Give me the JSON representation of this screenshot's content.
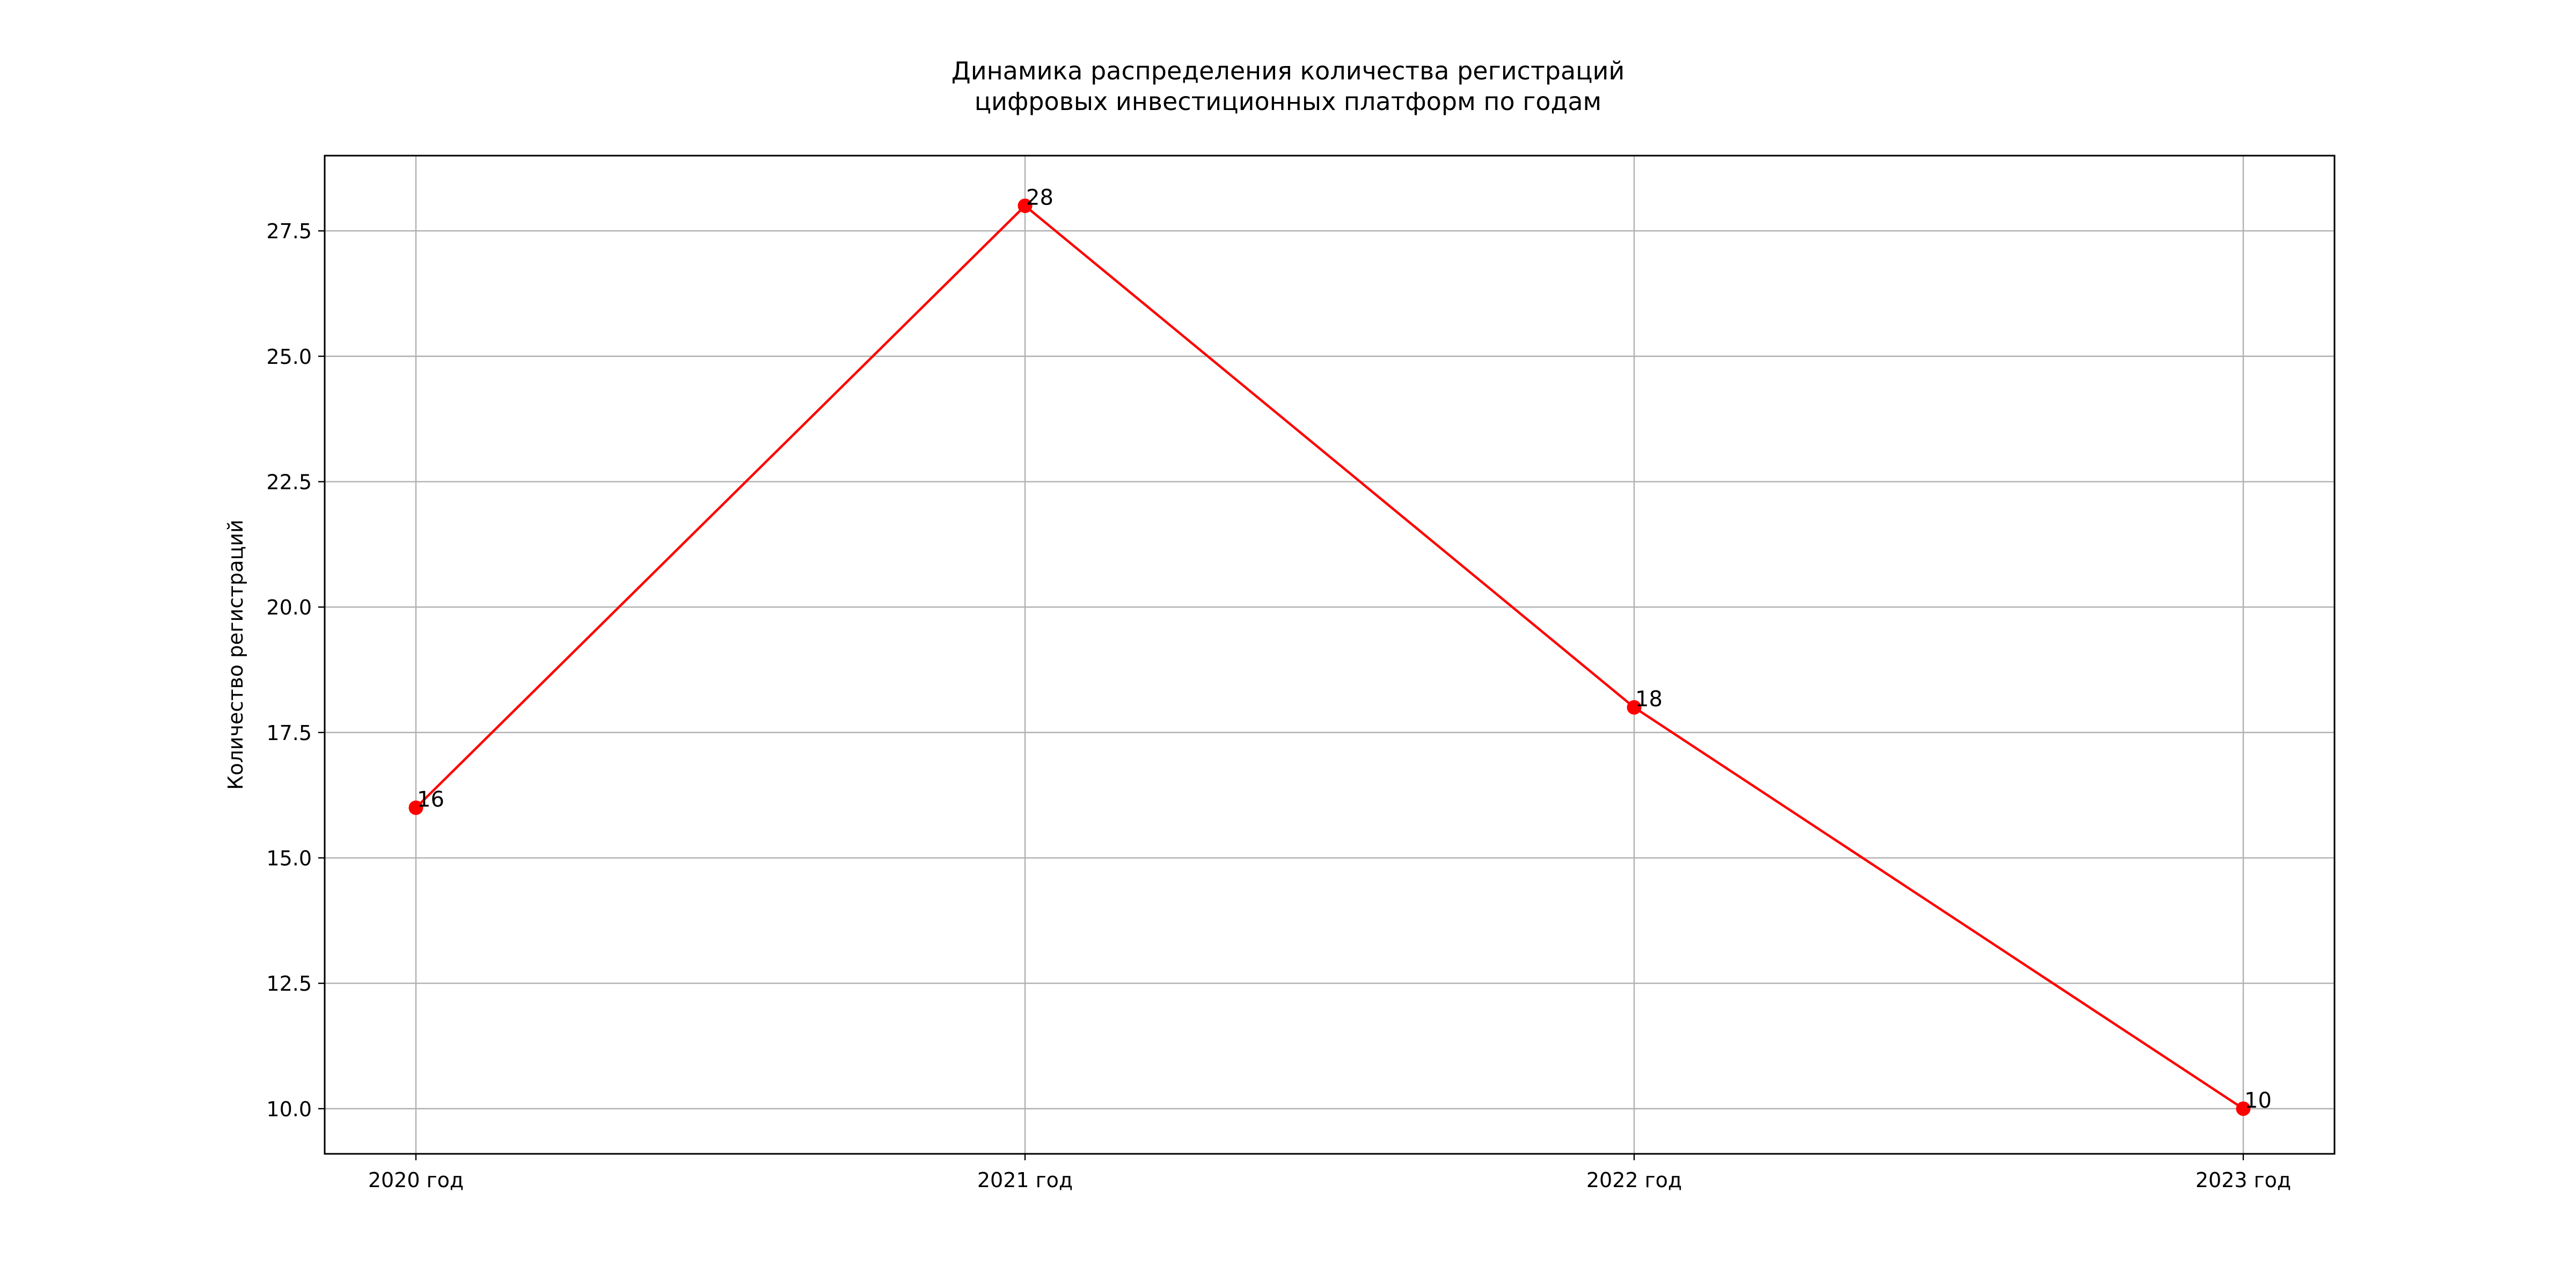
{
  "chart_data": {
    "type": "line",
    "title": [
      "Динамика распределения количества регистраций",
      "цифровых инвестиционных платформ по годам"
    ],
    "xlabel": "",
    "ylabel": "Количество регистраций",
    "categories": [
      "2020 год",
      "2021 год",
      "2022 год",
      "2023 год"
    ],
    "series": [
      {
        "values": [
          16,
          28,
          18,
          10
        ],
        "color": "#ff0000",
        "marker": "circle"
      }
    ],
    "data_labels": [
      "16",
      "28",
      "18",
      "10"
    ],
    "ylim": [
      9.1,
      29.0
    ],
    "yticks": [
      10.0,
      12.5,
      15.0,
      17.5,
      20.0,
      22.5,
      25.0,
      27.5
    ],
    "ytick_labels": [
      "10.0",
      "12.5",
      "15.0",
      "17.5",
      "20.0",
      "22.5",
      "25.0",
      "27.5"
    ],
    "grid": true,
    "legend": false
  }
}
